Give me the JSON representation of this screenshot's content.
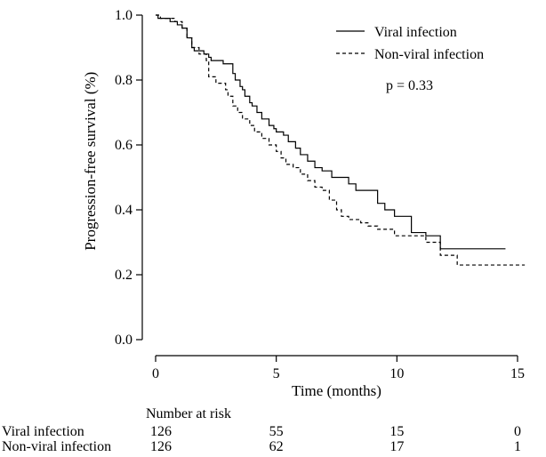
{
  "chart_data": {
    "type": "line",
    "step": true,
    "xlabel": "Time (months)",
    "ylabel": "Progression-free survival (%)",
    "xlim": [
      0,
      15.5
    ],
    "ylim": [
      0,
      1.0
    ],
    "x_ticks": [
      0,
      5,
      10,
      15
    ],
    "y_ticks": [
      0.0,
      0.2,
      0.4,
      0.6,
      0.8,
      1.0
    ],
    "x_tick_labels": [
      "0",
      "5",
      "10",
      "15"
    ],
    "y_tick_labels": [
      "0.0",
      "0.2",
      "0.4",
      "0.6",
      "0.8",
      "1.0"
    ],
    "grid": false,
    "legend_position": "top-right",
    "series": [
      {
        "name": "Viral infection",
        "style": "solid",
        "color": "#000000",
        "x": [
          0,
          0.1,
          0.6,
          0.9,
          1.1,
          1.3,
          1.5,
          1.6,
          2.0,
          2.2,
          2.3,
          2.5,
          2.8,
          3.2,
          3.3,
          3.5,
          3.6,
          3.7,
          3.9,
          4.0,
          4.2,
          4.4,
          4.7,
          4.9,
          5.0,
          5.3,
          5.5,
          5.8,
          6.0,
          6.3,
          6.6,
          6.9,
          7.3,
          7.6,
          8.0,
          8.3,
          8.9,
          9.2,
          9.5,
          9.9,
          10.6,
          11.2,
          11.8,
          14.5
        ],
        "y": [
          1.0,
          0.99,
          0.98,
          0.97,
          0.96,
          0.93,
          0.9,
          0.89,
          0.88,
          0.87,
          0.86,
          0.86,
          0.85,
          0.82,
          0.8,
          0.78,
          0.77,
          0.75,
          0.73,
          0.72,
          0.7,
          0.68,
          0.66,
          0.65,
          0.64,
          0.63,
          0.61,
          0.59,
          0.57,
          0.55,
          0.53,
          0.52,
          0.5,
          0.5,
          0.48,
          0.46,
          0.46,
          0.42,
          0.4,
          0.38,
          0.33,
          0.32,
          0.28,
          0.28
        ]
      },
      {
        "name": "Non-viral infection",
        "style": "dashed",
        "color": "#000000",
        "x": [
          0,
          0.2,
          0.8,
          1.1,
          1.3,
          1.5,
          1.8,
          2.1,
          2.2,
          2.5,
          2.9,
          3.0,
          3.2,
          3.4,
          3.6,
          3.9,
          4.1,
          4.4,
          4.7,
          5.0,
          5.2,
          5.4,
          5.7,
          6.0,
          6.3,
          6.6,
          6.9,
          7.2,
          7.5,
          7.7,
          8.0,
          8.5,
          8.8,
          9.2,
          9.9,
          10.8,
          11.2,
          11.8,
          12.5,
          15.3
        ],
        "y": [
          1.0,
          0.99,
          0.98,
          0.96,
          0.93,
          0.9,
          0.88,
          0.86,
          0.81,
          0.79,
          0.77,
          0.75,
          0.72,
          0.7,
          0.68,
          0.66,
          0.64,
          0.62,
          0.6,
          0.58,
          0.56,
          0.54,
          0.53,
          0.51,
          0.49,
          0.47,
          0.46,
          0.43,
          0.4,
          0.38,
          0.37,
          0.36,
          0.35,
          0.34,
          0.32,
          0.32,
          0.3,
          0.26,
          0.23,
          0.23
        ]
      }
    ],
    "annotation": "p = 0.33",
    "risk_table": {
      "title": "Number at risk",
      "rows": [
        {
          "label": "Viral infection",
          "values": [
            "126",
            "55",
            "15",
            "0"
          ]
        },
        {
          "label": "Non-viral infection",
          "values": [
            "126",
            "62",
            "17",
            "1"
          ]
        }
      ]
    }
  }
}
